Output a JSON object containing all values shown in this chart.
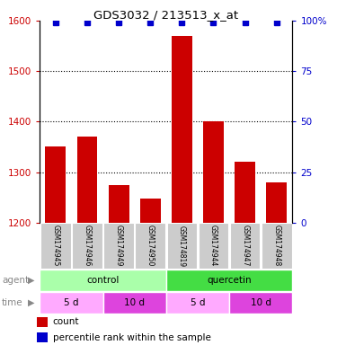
{
  "title": "GDS3032 / 213513_x_at",
  "samples": [
    "GSM174945",
    "GSM174946",
    "GSM174949",
    "GSM174950",
    "GSM174819",
    "GSM174944",
    "GSM174947",
    "GSM174948"
  ],
  "counts": [
    1350,
    1370,
    1275,
    1248,
    1570,
    1400,
    1320,
    1280
  ],
  "percentile_ranks": [
    99,
    99,
    99,
    99,
    99,
    99,
    99,
    99
  ],
  "ylim": [
    1200,
    1600
  ],
  "yticks": [
    1200,
    1300,
    1400,
    1500,
    1600
  ],
  "right_yticks": [
    0,
    25,
    50,
    75,
    100
  ],
  "right_ylabels": [
    "0",
    "25",
    "50",
    "75",
    "100%"
  ],
  "bar_color": "#cc0000",
  "dot_color": "#0000cc",
  "sample_bg_color": "#cccccc",
  "agent_groups": [
    {
      "label": "control",
      "start": 0,
      "end": 4,
      "color": "#aaffaa"
    },
    {
      "label": "quercetin",
      "start": 4,
      "end": 8,
      "color": "#44dd44"
    }
  ],
  "time_groups": [
    {
      "label": "5 d",
      "start": 0,
      "end": 2,
      "color": "#ffaaff"
    },
    {
      "label": "10 d",
      "start": 2,
      "end": 4,
      "color": "#dd44dd"
    },
    {
      "label": "5 d",
      "start": 4,
      "end": 6,
      "color": "#ffaaff"
    },
    {
      "label": "10 d",
      "start": 6,
      "end": 8,
      "color": "#dd44dd"
    }
  ]
}
